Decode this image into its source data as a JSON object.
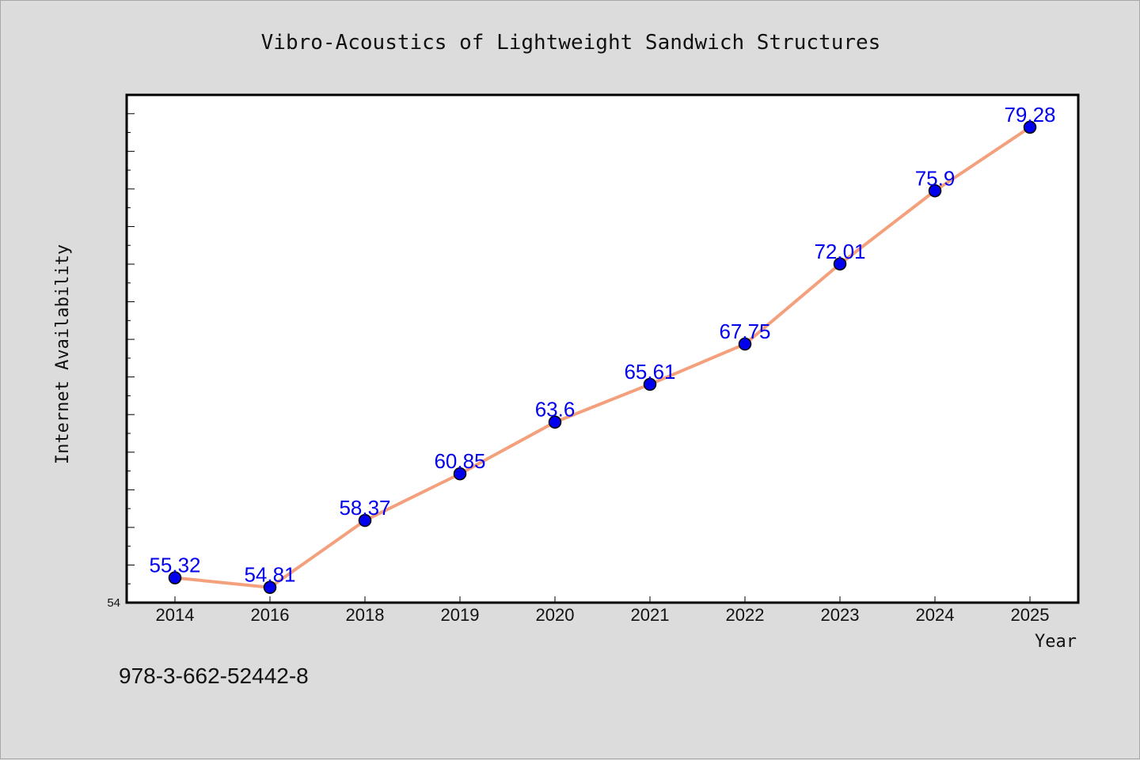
{
  "chart_data": {
    "type": "line",
    "title": "Vibro-Acoustics of Lightweight Sandwich Structures",
    "xlabel": "Year",
    "ylabel": "Internet Availability",
    "categories": [
      "2014",
      "2016",
      "2018",
      "2019",
      "2020",
      "2021",
      "2022",
      "2023",
      "2024",
      "2025"
    ],
    "series": [
      {
        "values": [
          55.32,
          54.81,
          58.37,
          60.85,
          63.6,
          65.61,
          67.75,
          72.01,
          75.9,
          79.28
        ]
      }
    ],
    "data_labels": [
      "55.32",
      "54.81",
      "58.37",
      "60.85",
      "63.6",
      "65.61",
      "67.75",
      "72.01",
      "75.9",
      "79.28"
    ],
    "ylim": [
      54,
      81
    ],
    "y_tick_labels": [
      "54"
    ],
    "grid": false,
    "line_color": "#f4a07c",
    "marker_color": "#0000ee",
    "label_color": "#0000ee",
    "plot_background": "#ffffff",
    "figure_background": "#dcdcdc"
  },
  "footer": {
    "isbn": "978-3-662-52442-8"
  }
}
